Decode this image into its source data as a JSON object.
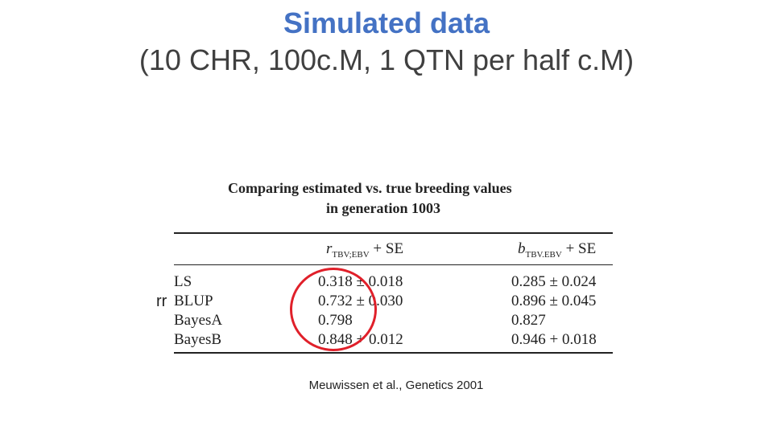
{
  "slide": {
    "title": "Simulated data",
    "subtitle": "(10 CHR, 100c.M, 1 QTN per half c.M)",
    "annotation": "rr",
    "citation": "Meuwissen et al., Genetics 2001",
    "circle_color": "#e0202a",
    "title_color": "#4472c4"
  },
  "table": {
    "caption_line1": "Comparing estimated vs. true breeding values",
    "caption_line2": "in generation 1003",
    "header_col1_var": "r",
    "header_col1_sub": "TBV;EBV",
    "header_col1_suffix": "+ SE",
    "header_col2_var": "b",
    "header_col2_sub": "TBV.EBV",
    "header_col2_suffix": "+ SE",
    "rows": [
      {
        "name": "LS",
        "r": "0.318 ± 0.018",
        "b": "0.285 ± 0.024"
      },
      {
        "name": "BLUP",
        "r": "0.732 ± 0.030",
        "b": "0.896 ± 0.045"
      },
      {
        "name": "BayesA",
        "r": "0.798",
        "b": "0.827"
      },
      {
        "name": "BayesB",
        "r": "0.848 + 0.012",
        "b": "0.946 + 0.018"
      }
    ]
  }
}
